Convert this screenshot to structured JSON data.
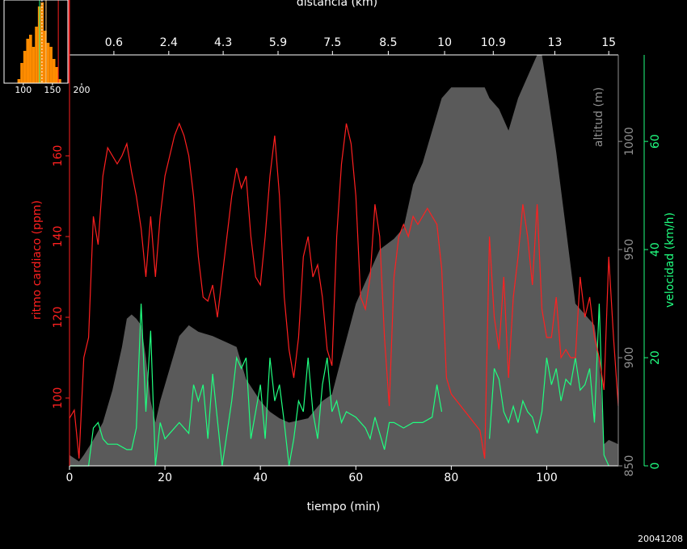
{
  "chart_data": [
    {
      "type": "line",
      "xlabel": "tiempo (min)",
      "x2label": "distancia (km)",
      "ylabel": "ritmo cardiaco (ppm)",
      "y2label": "altitud (m)",
      "y3label": "velocidad (km/h)",
      "date": "20041208",
      "xlim": [
        0,
        115
      ],
      "xticks": [
        0,
        20,
        40,
        60,
        80,
        100
      ],
      "x2ticks": [
        {
          "value": 9.3,
          "label": "0.6"
        },
        {
          "value": 20.8,
          "label": "2.4"
        },
        {
          "value": 32.2,
          "label": "4.3"
        },
        {
          "value": 43.7,
          "label": "5.9"
        },
        {
          "value": 55.1,
          "label": "7.5"
        },
        {
          "value": 66.8,
          "label": "8.5"
        },
        {
          "value": 78.6,
          "label": "10"
        },
        {
          "value": 88.8,
          "label": "10.9"
        },
        {
          "value": 101.7,
          "label": "13"
        },
        {
          "value": 113,
          "label": "15"
        }
      ],
      "ylim": [
        83.2,
        185
      ],
      "yticks": [
        100,
        120,
        140,
        160
      ],
      "ycolor": "#ff2020",
      "y2lim": [
        850,
        1040
      ],
      "y2ticks": [
        850,
        900,
        950,
        1000
      ],
      "y2color": "#909090",
      "y3lim": [
        0,
        76
      ],
      "y3ticks": [
        0,
        20,
        40,
        60
      ],
      "y3color": "#20ff80",
      "series": [
        {
          "style": "area",
          "axis": "y2",
          "color": "#5a5a5a",
          "x": [
            0,
            2,
            3,
            5,
            7,
            9,
            11,
            12,
            13,
            14,
            15,
            16,
            17,
            18,
            19,
            21,
            23,
            25,
            27,
            30,
            33,
            35,
            37,
            40,
            42,
            44,
            46,
            50,
            53,
            55,
            57,
            60,
            62,
            65,
            68,
            70,
            72,
            74,
            76,
            78,
            80,
            84,
            87,
            88,
            90,
            92,
            94,
            96,
            98,
            99,
            100,
            102,
            104,
            106,
            108,
            110,
            111,
            112,
            113,
            115
          ],
          "values": [
            855,
            852,
            855,
            862,
            870,
            885,
            905,
            918,
            920,
            918,
            915,
            900,
            880,
            870,
            880,
            895,
            910,
            915,
            912,
            910,
            907,
            905,
            890,
            880,
            875,
            872,
            870,
            872,
            880,
            883,
            900,
            925,
            935,
            950,
            955,
            960,
            980,
            990,
            1005,
            1020,
            1025,
            1025,
            1025,
            1020,
            1015,
            1005,
            1020,
            1030,
            1040,
            1040,
            1025,
            995,
            960,
            925,
            920,
            915,
            900,
            860,
            862,
            860
          ]
        },
        {
          "style": "line",
          "axis": "y3",
          "color": "#20ff80",
          "x": [
            0,
            4,
            5,
            6,
            7,
            8,
            10,
            12,
            13,
            14,
            15,
            16,
            17,
            18,
            19,
            20,
            21,
            23,
            25,
            26,
            27,
            28,
            29,
            30,
            32,
            34,
            35,
            36,
            37,
            38,
            39,
            40,
            41,
            42,
            43,
            44,
            45,
            46,
            47,
            48,
            49,
            50,
            51,
            52,
            53,
            54,
            55,
            56,
            57,
            58,
            60,
            62,
            63,
            64,
            66,
            67,
            68,
            70,
            72,
            74,
            76,
            77,
            78,
            80,
            88,
            89,
            90,
            91,
            92,
            93,
            94,
            95,
            96,
            97,
            98,
            99,
            100,
            101,
            102,
            103,
            104,
            105,
            106,
            107,
            108,
            109,
            110,
            111,
            112,
            113
          ],
          "values": [
            0,
            0,
            7,
            8,
            5,
            4,
            4,
            3,
            3,
            7,
            30,
            10,
            25,
            0,
            8,
            5,
            6,
            8,
            6,
            15,
            12,
            15,
            5,
            17,
            0,
            12,
            20,
            18,
            20,
            5,
            10,
            15,
            5,
            20,
            12,
            15,
            8,
            0,
            5,
            12,
            10,
            20,
            10,
            5,
            15,
            20,
            10,
            12,
            8,
            10,
            9,
            7,
            5,
            9,
            3,
            8,
            8,
            7,
            8,
            8,
            9,
            15,
            10,
            null,
            5,
            18,
            16,
            10,
            8,
            11,
            8,
            12,
            10,
            9,
            6,
            10,
            20,
            15,
            18,
            12,
            16,
            15,
            20,
            14,
            15,
            18,
            8,
            30,
            2,
            0
          ]
        },
        {
          "style": "line",
          "axis": "y",
          "color": "#ff2020",
          "x": [
            0,
            1,
            2,
            3,
            4,
            5,
            6,
            7,
            8,
            10,
            11,
            12,
            13,
            14,
            15,
            16,
            17,
            18,
            19,
            20,
            21,
            22,
            23,
            24,
            25,
            26,
            27,
            28,
            29,
            30,
            31,
            32,
            33,
            34,
            35,
            36,
            37,
            38,
            39,
            40,
            41,
            42,
            43,
            44,
            45,
            46,
            47,
            48,
            49,
            50,
            51,
            52,
            53,
            54,
            55,
            56,
            57,
            58,
            59,
            60,
            61,
            62,
            63,
            64,
            65,
            66,
            67,
            68,
            69,
            70,
            71,
            72,
            73,
            74,
            75,
            76,
            77,
            78,
            79,
            80,
            82,
            84,
            86,
            87,
            88,
            89,
            90,
            91,
            92,
            93,
            94,
            95,
            96,
            97,
            98,
            99,
            100,
            101,
            102,
            103,
            104,
            105,
            106,
            107,
            108,
            109,
            110,
            111,
            112,
            113,
            114,
            115
          ],
          "values": [
            95,
            97,
            85,
            110,
            115,
            145,
            138,
            155,
            162,
            158,
            160,
            163,
            156,
            150,
            142,
            130,
            145,
            130,
            145,
            155,
            160,
            165,
            168,
            165,
            160,
            150,
            135,
            125,
            124,
            128,
            120,
            130,
            140,
            150,
            157,
            152,
            155,
            140,
            130,
            128,
            140,
            155,
            165,
            150,
            125,
            112,
            105,
            115,
            135,
            140,
            130,
            133,
            125,
            112,
            108,
            140,
            158,
            168,
            163,
            150,
            125,
            122,
            130,
            148,
            140,
            115,
            98,
            130,
            140,
            143,
            140,
            145,
            143,
            145,
            147,
            145,
            143,
            132,
            105,
            101,
            98,
            95,
            92,
            85,
            140,
            120,
            112,
            130,
            105,
            125,
            135,
            148,
            140,
            128,
            148,
            122,
            115,
            115,
            125,
            110,
            112,
            110,
            110,
            130,
            120,
            125,
            115,
            110,
            102,
            135,
            115,
            98
          ]
        }
      ]
    },
    {
      "type": "histogram",
      "xlim": [
        67,
        200
      ],
      "xticks": [
        100,
        150,
        200
      ],
      "ylim": [
        0,
        103
      ],
      "bins": [
        90,
        95,
        100,
        105,
        110,
        115,
        120,
        125,
        130,
        135,
        140,
        145,
        150,
        155,
        160,
        165
      ],
      "counts": [
        5,
        25,
        40,
        55,
        60,
        45,
        70,
        95,
        100,
        65,
        50,
        45,
        30,
        20,
        5
      ],
      "color": "#ff8c00",
      "markers": [
        {
          "value": 128,
          "color": "#20ff80"
        },
        {
          "value": 132,
          "color": "#ffffff"
        },
        {
          "value": 139,
          "color": "#ffd080"
        },
        {
          "value": 160,
          "color": "#ff2020"
        },
        {
          "value": 178,
          "color": "#ff2020"
        }
      ]
    }
  ]
}
